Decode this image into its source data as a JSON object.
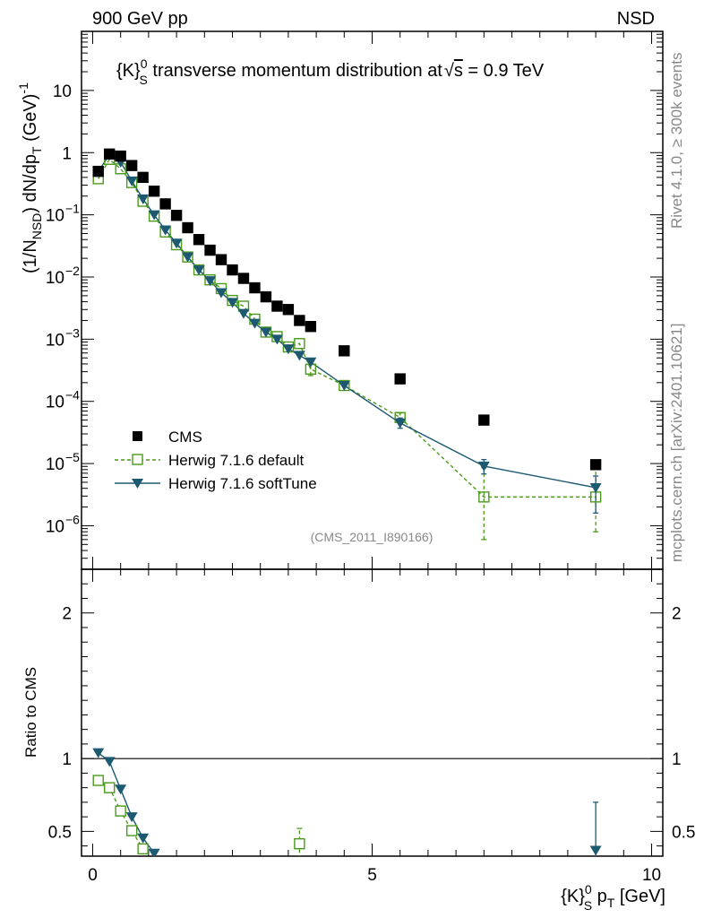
{
  "header": {
    "left": "900 GeV pp",
    "right": "NSD"
  },
  "plot_title": {
    "prefix": "{K}",
    "sup": "0",
    "sub": "S",
    "mid": " transverse momentum distribution at",
    "sqrt_s": "s",
    "suffix": " = 0.9 TeV"
  },
  "side_labels": {
    "rivet": "Rivet 4.1.0, ≥ 300k events",
    "mcplots": "mcplots.cern.ch [arXiv:2401.10621]"
  },
  "analysis_id": "(CMS_2011_I890166)",
  "legend": [
    "CMS",
    "Herwig 7.1.6 default",
    "Herwig 7.1.6 softTune"
  ],
  "colors": {
    "data": "#000000",
    "default": "#4a9a1a",
    "softtune": "#1d5a72"
  },
  "chart_data": [
    {
      "type": "scatter",
      "scale": "log",
      "ylabel": "(1/N_NSD) dN/dp_T (GeV)^-1",
      "xlim": [
        -0.2,
        10.2
      ],
      "ylim_log10": [
        -6.7,
        1.95
      ],
      "y_ticks": [
        {
          "value": 10,
          "base": "10",
          "exp": ""
        },
        {
          "value": 1,
          "base": "1",
          "exp": ""
        },
        {
          "value": 0.1,
          "base": "10",
          "exp": "−1"
        },
        {
          "value": 0.01,
          "base": "10",
          "exp": "−2"
        },
        {
          "value": 0.001,
          "base": "10",
          "exp": "−3"
        },
        {
          "value": 0.0001,
          "base": "10",
          "exp": "−4"
        },
        {
          "value": 1e-05,
          "base": "10",
          "exp": "−5"
        },
        {
          "value": 1e-06,
          "base": "10",
          "exp": "−6"
        }
      ],
      "series": [
        {
          "name": "CMS",
          "x": [
            0.1,
            0.3,
            0.5,
            0.7,
            0.9,
            1.1,
            1.3,
            1.5,
            1.7,
            1.9,
            2.1,
            2.3,
            2.5,
            2.7,
            2.9,
            3.1,
            3.3,
            3.5,
            3.7,
            3.9,
            4.5,
            5.5,
            7.0,
            9.0
          ],
          "y": [
            0.5,
            0.95,
            0.88,
            0.62,
            0.4,
            0.24,
            0.15,
            0.098,
            0.062,
            0.04,
            0.027,
            0.019,
            0.013,
            0.0095,
            0.0067,
            0.0048,
            0.0034,
            0.003,
            0.002,
            0.0016,
            0.00065,
            0.00023,
            5e-05,
            9.6e-06
          ]
        },
        {
          "name": "Herwig 7.1.6 default",
          "x": [
            0.1,
            0.3,
            0.5,
            0.7,
            0.9,
            1.1,
            1.3,
            1.5,
            1.7,
            1.9,
            2.1,
            2.3,
            2.5,
            2.7,
            2.9,
            3.1,
            3.3,
            3.5,
            3.7,
            3.9,
            4.5,
            5.5,
            7.0,
            9.0
          ],
          "y": [
            0.38,
            0.78,
            0.55,
            0.33,
            0.165,
            0.095,
            0.053,
            0.033,
            0.021,
            0.013,
            0.009,
            0.0065,
            0.0042,
            0.0034,
            0.0021,
            0.0013,
            0.0011,
            0.00075,
            0.00085,
            0.00033,
            0.00018,
            5.5e-05,
            2.9e-06,
            2.9e-06
          ],
          "err_lo": [
            0,
            0,
            0,
            0,
            0,
            0,
            0,
            0,
            0,
            0,
            0,
            0,
            0,
            0,
            0,
            0,
            0,
            0,
            0,
            0.00026,
            0,
            4.7e-05,
            6e-07,
            8e-07
          ],
          "err_hi": [
            0,
            0,
            0,
            0,
            0,
            0,
            0,
            0,
            0,
            0,
            0,
            0,
            0,
            0,
            0,
            0,
            0,
            0,
            0,
            0.00039,
            0,
            6.5e-05,
            8.5e-06,
            8.5e-06
          ]
        },
        {
          "name": "Herwig 7.1.6 softTune",
          "x": [
            0.1,
            0.3,
            0.5,
            0.7,
            0.9,
            1.1,
            1.3,
            1.5,
            1.7,
            1.9,
            2.1,
            2.3,
            2.5,
            2.7,
            2.9,
            3.1,
            3.3,
            3.5,
            3.7,
            3.9,
            4.5,
            5.5,
            7.0,
            9.0
          ],
          "y": [
            0.5,
            0.92,
            0.7,
            0.35,
            0.18,
            0.1,
            0.057,
            0.035,
            0.021,
            0.013,
            0.0087,
            0.0056,
            0.0039,
            0.0026,
            0.0018,
            0.0013,
            0.001,
            0.0007,
            0.00055,
            0.00043,
            0.00018,
            4.5e-05,
            9.1e-06,
            4.1e-06
          ],
          "err_lo": [
            0,
            0,
            0,
            0,
            0,
            0,
            0,
            0,
            0,
            0,
            0,
            0,
            0,
            0,
            0,
            0,
            0,
            0,
            0,
            0,
            0,
            3.7e-05,
            6.8e-06,
            1.6e-06
          ],
          "err_hi": [
            0,
            0,
            0,
            0,
            0,
            0,
            0,
            0,
            0,
            0,
            0,
            0,
            0,
            0,
            0,
            0,
            0,
            0,
            0,
            0,
            0,
            5.4e-05,
            1.16e-05,
            6.3e-06
          ]
        }
      ]
    },
    {
      "type": "line",
      "ylabel": "Ratio to CMS",
      "xlabel_prefix": "{K}",
      "xlabel_sup": "0",
      "xlabel_sub": "S",
      "xlabel_mid": " p",
      "xlabel_sub2": "T",
      "xlabel_suffix": " [GeV]",
      "xlim": [
        -0.2,
        10.2
      ],
      "ylim": [
        0.33,
        2.3
      ],
      "x_ticks": [
        {
          "value": 0,
          "label": "0"
        },
        {
          "value": 5,
          "label": "5"
        },
        {
          "value": 10,
          "label": "10"
        }
      ],
      "y_ticks": [
        {
          "value": 2,
          "label": "2"
        },
        {
          "value": 1,
          "label": "1"
        },
        {
          "value": 0.5,
          "label": "0.5"
        }
      ],
      "reference": 1,
      "series": [
        {
          "name": "Herwig 7.1.6 default",
          "x": [
            0.1,
            0.3,
            0.5,
            0.7,
            0.9,
            3.7
          ],
          "y": [
            0.85,
            0.8,
            0.64,
            0.505,
            0.38,
            0.415
          ],
          "err_lo": [
            0,
            0,
            0,
            0,
            0,
            0.31
          ],
          "err_hi": [
            0,
            0,
            0,
            0,
            0,
            0.52
          ],
          "line_points": 5
        },
        {
          "name": "Herwig 7.1.6 softTune",
          "x": [
            0.1,
            0.3,
            0.5,
            0.7,
            0.9,
            1.1,
            9.0
          ],
          "y": [
            1.04,
            0.98,
            0.79,
            0.6,
            0.455,
            0.35,
            0.37
          ],
          "err_lo": [
            0,
            0,
            0,
            0,
            0,
            0,
            0.3
          ],
          "err_hi": [
            0,
            0,
            0,
            0,
            0,
            0,
            0.7
          ],
          "line_points": 6
        }
      ]
    }
  ]
}
